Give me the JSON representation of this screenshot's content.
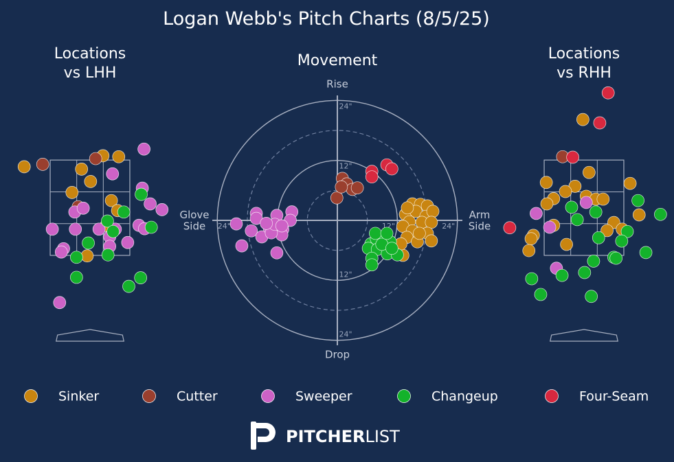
{
  "title": "Logan Webb's Pitch Charts (8/5/25)",
  "logo": {
    "bold": "PITCHER",
    "light": "LIST"
  },
  "chart_data": [
    {
      "type": "scatter",
      "title": "Locations\nvs LHH",
      "xlim": [
        -1.6,
        1.6
      ],
      "ylim": [
        -0.3,
        5.0
      ],
      "strike_zone": [
        -0.708,
        0.708,
        1.5,
        3.5
      ],
      "series": [
        {
          "name": "Sinker",
          "color": "#c98510",
          "x": [
            -1.17,
            0.23,
            0.51,
            -0.15,
            0.01,
            -0.32,
            0.38,
            0.49,
            0.29,
            -0.05
          ],
          "values": [
            3.36,
            3.59,
            3.57,
            3.31,
            3.05,
            2.82,
            2.65,
            2.44,
            2.13,
            1.49
          ]
        },
        {
          "name": "Cutter",
          "color": "#9a3f2e",
          "x": [
            -0.84,
            0.1,
            -0.21
          ],
          "values": [
            3.41,
            3.53,
            2.52
          ]
        },
        {
          "name": "Sweeper",
          "color": "#cd62c6",
          "x": [
            0.96,
            0.4,
            0.93,
            1.07,
            1.28,
            -0.27,
            -0.12,
            -0.67,
            -0.26,
            0.16,
            0.45,
            0.87,
            0.97,
            0.35,
            0.67,
            0.35,
            -0.47,
            -0.51,
            -0.54
          ],
          "values": [
            3.73,
            3.21,
            2.91,
            2.58,
            2.46,
            2.41,
            2.49,
            2.05,
            2.05,
            2.05,
            2.05,
            2.13,
            2.06,
            1.89,
            1.77,
            1.69,
            1.64,
            1.57,
            0.51
          ]
        },
        {
          "name": "Changeup",
          "color": "#14b22b",
          "x": [
            0.91,
            0.6,
            0.31,
            1.09,
            0.41,
            -0.03,
            -0.24,
            0.32,
            -0.24,
            0.9,
            0.69
          ],
          "values": [
            2.78,
            2.41,
            2.22,
            2.09,
            2.0,
            1.76,
            1.46,
            1.51,
            1.04,
            1.03,
            0.85
          ]
        }
      ]
    },
    {
      "type": "scatter",
      "title": "Movement",
      "xlim": [
        -25,
        25
      ],
      "ylim": [
        -25,
        25
      ],
      "xticks": [
        {
          "value": -24,
          "label": "24\""
        },
        {
          "value": 12,
          "label": "12\""
        },
        {
          "value": 24,
          "label": "24\""
        }
      ],
      "yticks": [
        {
          "value": -24,
          "label": "24\""
        },
        {
          "value": -12,
          "label": "12\""
        },
        {
          "value": 12,
          "label": "12\""
        },
        {
          "value": 24,
          "label": "24\""
        }
      ],
      "rings": [
        12,
        24
      ],
      "minor_rings": [
        6,
        18
      ],
      "label_top": "Rise",
      "label_bottom": "Drop",
      "label_left": "Glove\nSide",
      "label_right": "Arm\nSide",
      "series": [
        {
          "name": "Sinker",
          "color": "#c98510",
          "x": [
            15.0,
            16.6,
            18.0,
            13.6,
            15.7,
            17.7,
            19.1,
            14.4,
            16.9,
            18.8,
            13.1,
            15.0,
            18.0,
            13.9,
            16.0,
            18.8,
            13.1,
            12.7,
            16.4,
            14.0
          ],
          "values": [
            3.3,
            3.2,
            2.9,
            1.2,
            1.8,
            0.8,
            1.8,
            -0.3,
            -0.4,
            -0.4,
            -1.2,
            -2.1,
            -2.6,
            -3.4,
            -4.3,
            -4.1,
            -7.0,
            -4.7,
            -2.6,
            2.5
          ]
        },
        {
          "name": "Cutter",
          "color": "#9a3f2e",
          "x": [
            1.0,
            1.9,
            3.0,
            4.0,
            -0.1,
            0.8
          ],
          "values": [
            8.4,
            7.3,
            6.2,
            6.5,
            4.5,
            6.7
          ]
        },
        {
          "name": "Sweeper",
          "color": "#cd62c6",
          "x": [
            -16.2,
            -16.2,
            -20.2,
            -17.2,
            -19.1,
            -15.1,
            -13.6,
            -12.1,
            -9.1,
            -9.4,
            -10.9,
            -11.1,
            -13.2,
            -12.5,
            -12.1,
            -14.2,
            -11.1
          ],
          "values": [
            1.4,
            0.4,
            -0.7,
            -2.1,
            -5.1,
            -3.3,
            -1.5,
            1.0,
            1.7,
            0,
            -1.8,
            -2.9,
            -2.5,
            -0.8,
            -6.5,
            -0.6,
            -1.1
          ]
        },
        {
          "name": "Changeup",
          "color": "#14b22b",
          "x": [
            6.7,
            7.8,
            9.5,
            10.6,
            6.2,
            8.0,
            10.0,
            12.0,
            6.9,
            6.9,
            8.9,
            10.9,
            7.6,
            9.9
          ],
          "values": [
            -4.7,
            -3.7,
            -3.3,
            -4.3,
            -5.6,
            -5.8,
            -6.7,
            -6.9,
            -7.6,
            -8.9,
            -4.8,
            -5.6,
            -2.6,
            -2.6
          ]
        },
        {
          "name": "Four-Seam",
          "color": "#d8283f",
          "x": [
            6.9,
            9.9,
            10.9,
            6.9
          ],
          "values": [
            9.8,
            11.1,
            10.3,
            8.7
          ]
        }
      ]
    },
    {
      "type": "scatter",
      "title": "Locations\nvs RHH",
      "xlim": [
        -1.6,
        1.6
      ],
      "ylim": [
        -0.3,
        5.0
      ],
      "strike_zone": [
        -0.708,
        0.708,
        1.5,
        3.5
      ],
      "series": [
        {
          "name": "Sinker",
          "color": "#c98510",
          "x": [
            -0.02,
            0.09,
            -0.67,
            0.82,
            -0.16,
            -0.33,
            -0.54,
            0.04,
            0.21,
            0.34,
            -0.66,
            0.98,
            -0.54,
            0.53,
            0.41,
            0.68,
            -0.9,
            -0.94,
            -0.31,
            -0.98
          ],
          "values": [
            4.35,
            3.24,
            3.03,
            3.01,
            2.95,
            2.84,
            2.69,
            2.74,
            2.68,
            2.68,
            2.58,
            2.35,
            2.13,
            2.19,
            2.02,
            2.05,
            1.92,
            1.85,
            1.73,
            1.6
          ]
        },
        {
          "name": "Cutter",
          "color": "#9a3f2e",
          "x": [
            -0.38
          ],
          "values": [
            3.57
          ]
        },
        {
          "name": "Sweeper",
          "color": "#cd62c6",
          "x": [
            -0.85,
            -0.61,
            0.04,
            -0.49
          ],
          "values": [
            2.38,
            2.09,
            2.61,
            1.23
          ]
        },
        {
          "name": "Changeup",
          "color": "#14b22b",
          "x": [
            -0.22,
            -0.12,
            0.21,
            0.96,
            1.36,
            0.26,
            0.77,
            0.67,
            0.53,
            0.57,
            0.17,
            1.1,
            -0.93,
            -0.39,
            0.01,
            -0.77,
            0.13
          ],
          "values": [
            2.51,
            2.25,
            2.41,
            2.65,
            2.36,
            1.87,
            2.0,
            1.8,
            1.46,
            1.44,
            1.38,
            1.56,
            1.01,
            1.08,
            1.14,
            0.68,
            0.64
          ]
        },
        {
          "name": "Four-Seam",
          "color": "#d8283f",
          "x": [
            0.43,
            0.28,
            -0.2,
            -1.32
          ],
          "values": [
            4.91,
            4.28,
            3.56,
            2.08
          ]
        }
      ]
    }
  ]
}
